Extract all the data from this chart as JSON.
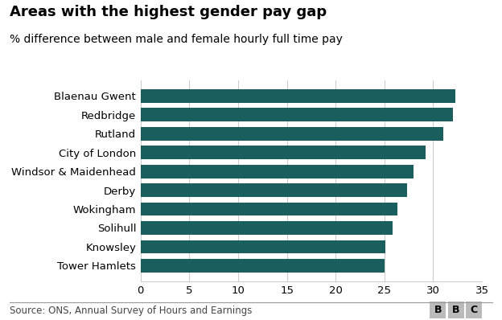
{
  "title": "Areas with the highest gender pay gap",
  "subtitle": "% difference between male and female hourly full time pay",
  "categories": [
    "Tower Hamlets",
    "Knowsley",
    "Solihull",
    "Wokingham",
    "Derby",
    "Windsor & Maidenhead",
    "City of London",
    "Rutland",
    "Redbridge",
    "Blaenau Gwent"
  ],
  "values": [
    25.0,
    25.1,
    25.8,
    26.3,
    27.3,
    28.0,
    29.2,
    31.0,
    32.0,
    32.3
  ],
  "bar_color": "#1a5e5e",
  "background_color": "#ffffff",
  "grid_color": "#cccccc",
  "xlim": [
    0,
    35
  ],
  "xticks": [
    0,
    5,
    10,
    15,
    20,
    25,
    30,
    35
  ],
  "source_text": "Source: ONS, Annual Survey of Hours and Earnings",
  "bbc_text": "BBC",
  "title_fontsize": 13,
  "subtitle_fontsize": 10,
  "tick_fontsize": 9.5,
  "source_fontsize": 8.5
}
